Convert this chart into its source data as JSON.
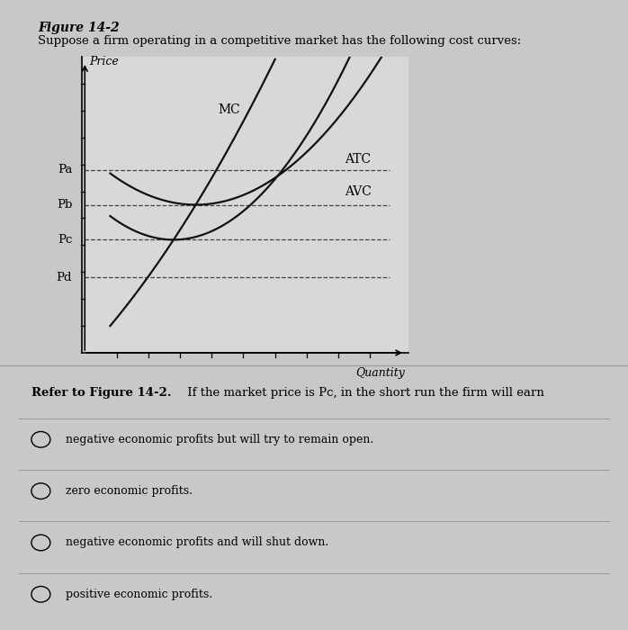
{
  "title": "Figure 14-2",
  "subtitle": "Suppose a firm operating in a competitive market has the following cost curves:",
  "xlabel": "Quantity",
  "ylabel": "Price",
  "background_color": "#c8c8c8",
  "plot_bg_color": "#d8d8d8",
  "price_labels": [
    "Pa",
    "Pb",
    "Pc",
    "Pd"
  ],
  "price_values": [
    0.68,
    0.55,
    0.42,
    0.28
  ],
  "question_text_bold": "Refer to Figure 14-2.",
  "question_text_normal": " If the market price is Pc, in the short run the firm will earn",
  "options": [
    "negative economic profits but will try to remain open.",
    "zero economic profits.",
    "negative economic profits and will shut down.",
    "positive economic profits."
  ],
  "curve_color": "#111111",
  "dashed_color": "#444444",
  "separator_color": "#999999"
}
